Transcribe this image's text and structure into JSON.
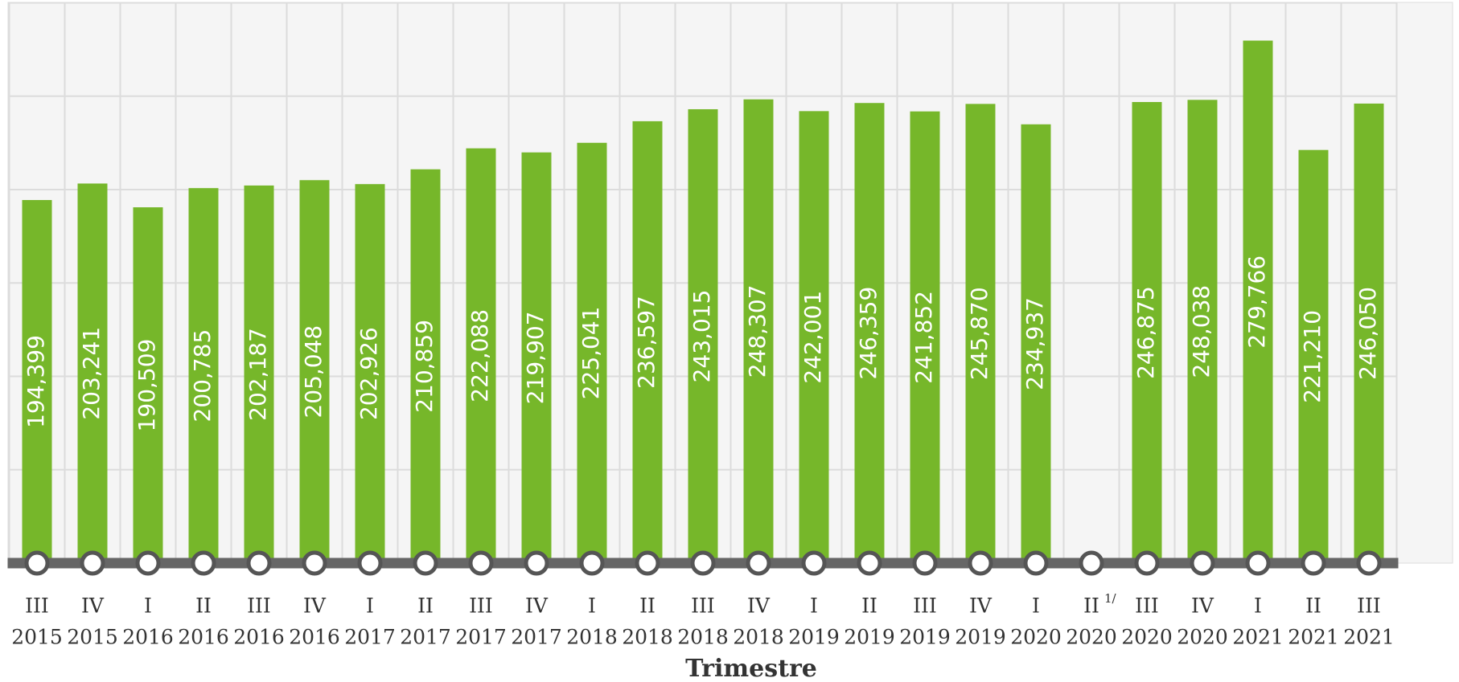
{
  "chart_data": {
    "type": "bar",
    "x_label": "Trimestre",
    "categories": [
      [
        "III",
        "2015"
      ],
      [
        "IV",
        "2015"
      ],
      [
        "I",
        "2016"
      ],
      [
        "II",
        "2016"
      ],
      [
        "III",
        "2016"
      ],
      [
        "IV",
        "2016"
      ],
      [
        "I",
        "2017"
      ],
      [
        "II",
        "2017"
      ],
      [
        "III",
        "2017"
      ],
      [
        "IV",
        "2017"
      ],
      [
        "I",
        "2018"
      ],
      [
        "II",
        "2018"
      ],
      [
        "III",
        "2018"
      ],
      [
        "IV",
        "2018"
      ],
      [
        "I",
        "2019"
      ],
      [
        "II",
        "2019"
      ],
      [
        "III",
        "2019"
      ],
      [
        "IV",
        "2019"
      ],
      [
        "I",
        "2020"
      ],
      [
        "II",
        "2020"
      ],
      [
        "III",
        "2020"
      ],
      [
        "IV",
        "2020"
      ],
      [
        "I",
        "2021"
      ],
      [
        "II",
        "2021"
      ],
      [
        "III",
        "2021"
      ]
    ],
    "footnotes": [
      {
        "category": 19,
        "label": "1/"
      }
    ],
    "values": [
      194399,
      203241,
      190509,
      200785,
      202187,
      205048,
      202926,
      210859,
      222088,
      219907,
      225041,
      236597,
      243015,
      248307,
      242001,
      246359,
      241852,
      245870,
      234937,
      null,
      246875,
      248038,
      279766,
      221210,
      246050
    ],
    "value_labels": [
      "194,399",
      "203,241",
      "190,509",
      "200,785",
      "202,187",
      "205,048",
      "202,926",
      "210,859",
      "222,088",
      "219,907",
      "225,041",
      "236,597",
      "243,015",
      "248,307",
      "242,001",
      "246,359",
      "241,852",
      "245,870",
      "234,937",
      null,
      "246,875",
      "248,038",
      "279,766",
      "221,210",
      "246,050"
    ],
    "color": "#76b72a",
    "ylim": [
      0,
      300000
    ],
    "yticks": [
      0,
      50000,
      100000,
      150000,
      200000,
      250000,
      300000
    ],
    "grid": true
  }
}
